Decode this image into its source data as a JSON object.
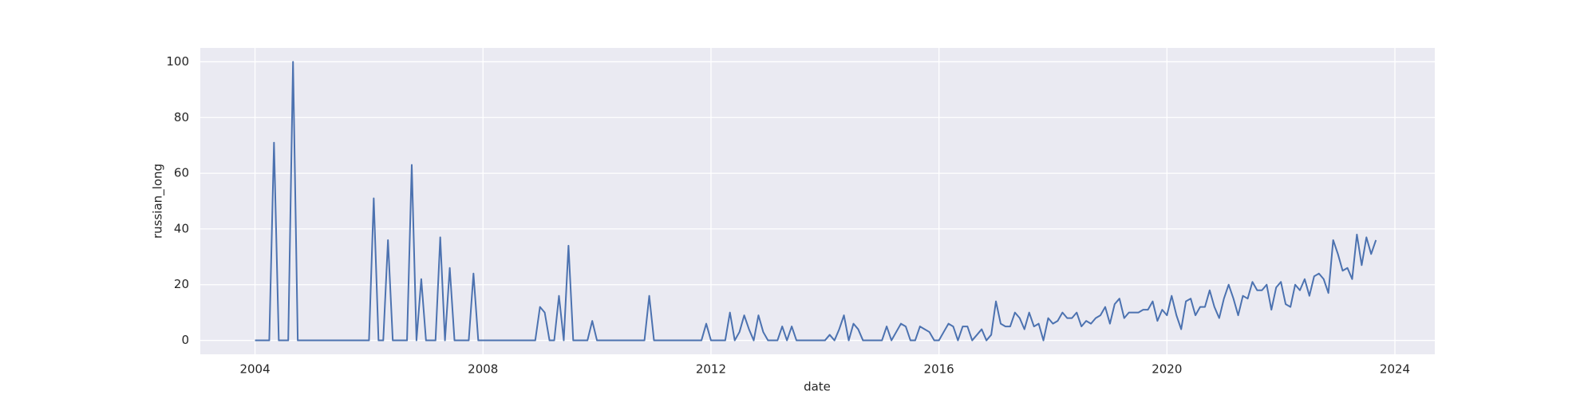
{
  "chart_data": {
    "type": "line",
    "xlabel": "date",
    "ylabel": "russian_long",
    "color": "#4c72b0",
    "grid": true,
    "xlim": [
      2003.04,
      2024.7
    ],
    "xticks": [
      2004,
      2008,
      2012,
      2016,
      2020,
      2024
    ],
    "ylim": [
      -5,
      105
    ],
    "yticks": [
      0,
      20,
      40,
      60,
      80,
      100
    ],
    "x": [
      2004,
      2004.083,
      2004.167,
      2004.25,
      2004.333,
      2004.417,
      2004.5,
      2004.583,
      2004.667,
      2004.75,
      2004.833,
      2004.917,
      2005,
      2005.083,
      2005.167,
      2005.25,
      2005.333,
      2005.417,
      2005.5,
      2005.583,
      2005.667,
      2005.75,
      2005.833,
      2005.917,
      2006,
      2006.083,
      2006.167,
      2006.25,
      2006.333,
      2006.417,
      2006.5,
      2006.583,
      2006.667,
      2006.75,
      2006.833,
      2006.917,
      2007,
      2007.083,
      2007.167,
      2007.25,
      2007.333,
      2007.417,
      2007.5,
      2007.583,
      2007.667,
      2007.75,
      2007.833,
      2007.917,
      2008,
      2008.083,
      2008.167,
      2008.25,
      2008.333,
      2008.417,
      2008.5,
      2008.583,
      2008.667,
      2008.75,
      2008.833,
      2008.917,
      2009,
      2009.083,
      2009.167,
      2009.25,
      2009.333,
      2009.417,
      2009.5,
      2009.583,
      2009.667,
      2009.75,
      2009.833,
      2009.917,
      2010,
      2010.083,
      2010.167,
      2010.25,
      2010.333,
      2010.417,
      2010.5,
      2010.583,
      2010.667,
      2010.75,
      2010.833,
      2010.917,
      2011,
      2011.083,
      2011.167,
      2011.25,
      2011.333,
      2011.417,
      2011.5,
      2011.583,
      2011.667,
      2011.75,
      2011.833,
      2011.917,
      2012,
      2012.083,
      2012.167,
      2012.25,
      2012.333,
      2012.417,
      2012.5,
      2012.583,
      2012.667,
      2012.75,
      2012.833,
      2012.917,
      2013,
      2013.083,
      2013.167,
      2013.25,
      2013.333,
      2013.417,
      2013.5,
      2013.583,
      2013.667,
      2013.75,
      2013.833,
      2013.917,
      2014,
      2014.083,
      2014.167,
      2014.25,
      2014.333,
      2014.417,
      2014.5,
      2014.583,
      2014.667,
      2014.75,
      2014.833,
      2014.917,
      2015,
      2015.083,
      2015.167,
      2015.25,
      2015.333,
      2015.417,
      2015.5,
      2015.583,
      2015.667,
      2015.75,
      2015.833,
      2015.917,
      2016,
      2016.083,
      2016.167,
      2016.25,
      2016.333,
      2016.417,
      2016.5,
      2016.583,
      2016.667,
      2016.75,
      2016.833,
      2016.917,
      2017,
      2017.083,
      2017.167,
      2017.25,
      2017.333,
      2017.417,
      2017.5,
      2017.583,
      2017.667,
      2017.75,
      2017.833,
      2017.917,
      2018,
      2018.083,
      2018.167,
      2018.25,
      2018.333,
      2018.417,
      2018.5,
      2018.583,
      2018.667,
      2018.75,
      2018.833,
      2018.917,
      2019,
      2019.083,
      2019.167,
      2019.25,
      2019.333,
      2019.417,
      2019.5,
      2019.583,
      2019.667,
      2019.75,
      2019.833,
      2019.917,
      2020,
      2020.083,
      2020.167,
      2020.25,
      2020.333,
      2020.417,
      2020.5,
      2020.583,
      2020.667,
      2020.75,
      2020.833,
      2020.917,
      2021,
      2021.083,
      2021.167,
      2021.25,
      2021.333,
      2021.417,
      2021.5,
      2021.583,
      2021.667,
      2021.75,
      2021.833,
      2021.917,
      2022,
      2022.083,
      2022.167,
      2022.25,
      2022.333,
      2022.417,
      2022.5,
      2022.583,
      2022.667,
      2022.75,
      2022.833,
      2022.917,
      2023,
      2023.083,
      2023.167,
      2023.25,
      2023.333,
      2023.417,
      2023.5,
      2023.583,
      2023.667
    ],
    "values": [
      0,
      0,
      0,
      0,
      71,
      0,
      0,
      0,
      100,
      0,
      0,
      0,
      0,
      0,
      0,
      0,
      0,
      0,
      0,
      0,
      0,
      0,
      0,
      0,
      0,
      51,
      0,
      0,
      36,
      0,
      0,
      0,
      0,
      63,
      0,
      22,
      0,
      0,
      0,
      37,
      0,
      26,
      0,
      0,
      0,
      0,
      24,
      0,
      0,
      0,
      0,
      0,
      0,
      0,
      0,
      0,
      0,
      0,
      0,
      0,
      12,
      10,
      0,
      0,
      16,
      0,
      34,
      0,
      0,
      0,
      0,
      7,
      0,
      0,
      0,
      0,
      0,
      0,
      0,
      0,
      0,
      0,
      0,
      16,
      0,
      0,
      0,
      0,
      0,
      0,
      0,
      0,
      0,
      0,
      0,
      6,
      0,
      0,
      0,
      0,
      10,
      0,
      3,
      9,
      4,
      0,
      9,
      3,
      0,
      0,
      0,
      5,
      0,
      5,
      0,
      0,
      0,
      0,
      0,
      0,
      0,
      2,
      0,
      4,
      9,
      0,
      6,
      4,
      0,
      0,
      0,
      0,
      0,
      5,
      0,
      3,
      6,
      5,
      0,
      0,
      5,
      4,
      3,
      0,
      0,
      3,
      6,
      5,
      0,
      5,
      5,
      0,
      2,
      4,
      0,
      2,
      14,
      6,
      5,
      5,
      10,
      8,
      4,
      10,
      5,
      6,
      0,
      8,
      6,
      7,
      10,
      8,
      8,
      10,
      5,
      7,
      6,
      8,
      9,
      12,
      6,
      13,
      15,
      8,
      10,
      10,
      10,
      11,
      11,
      14,
      7,
      11,
      9,
      16,
      9,
      4,
      14,
      15,
      9,
      12,
      12,
      18,
      12,
      8,
      15,
      20,
      15,
      9,
      16,
      15,
      21,
      18,
      18,
      20,
      11,
      19,
      21,
      13,
      12,
      20,
      18,
      22,
      16,
      23,
      24,
      22,
      17,
      36,
      31,
      25,
      26,
      22,
      38,
      27,
      37,
      31,
      36
    ]
  }
}
